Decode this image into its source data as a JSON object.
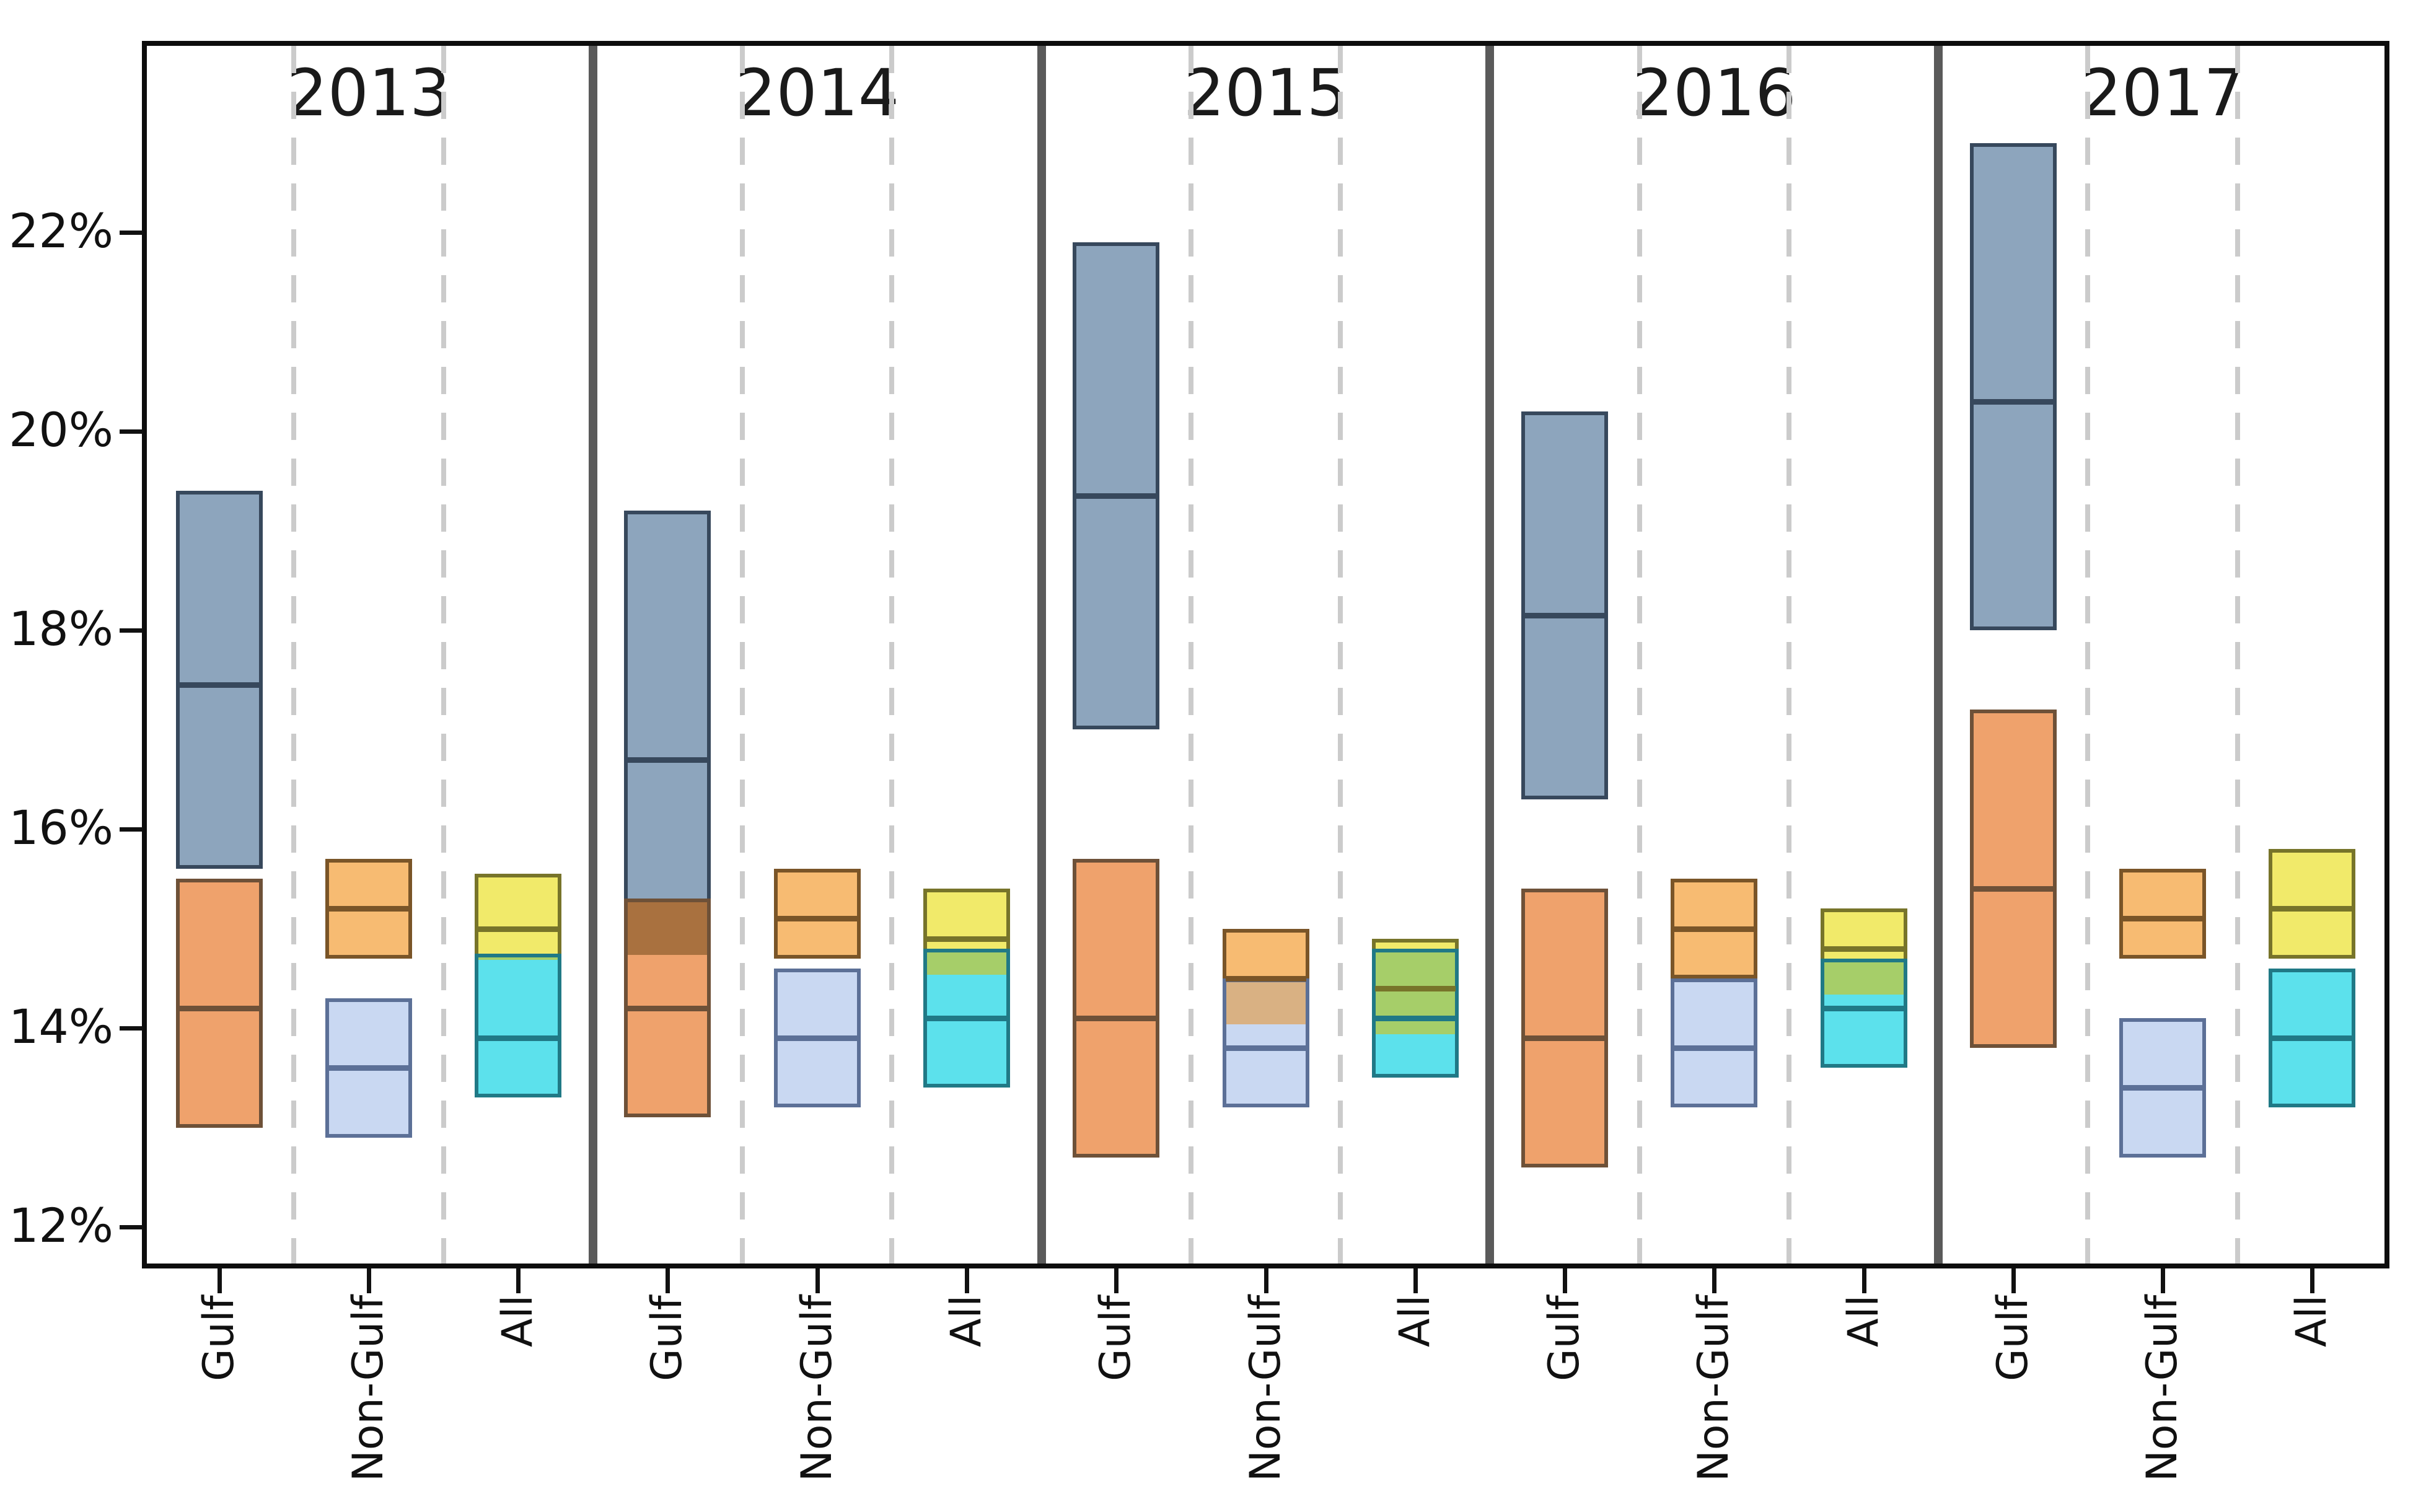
{
  "chart_data": {
    "type": "box",
    "title": "",
    "ylabel": "",
    "xlabel": "",
    "grid": "dashed vertical separators between categories, solid dark separators between year panels",
    "legend_position": "none",
    "y_axis": {
      "tick_values": [
        12,
        14,
        16,
        18,
        20,
        22
      ],
      "tick_labels": [
        "12%",
        "14%",
        "16%",
        "18%",
        "20%",
        "22%"
      ],
      "ylim": [
        11.6,
        23.9
      ],
      "unit": "%"
    },
    "categories": [
      "Gulf",
      "Non-Gulf",
      "All"
    ],
    "panels": [
      {
        "year": "2013",
        "groups": [
          {
            "category": "Gulf",
            "overlap_color": "#A9713F",
            "boxes": [
              {
                "name": "upper",
                "lo": 15.6,
                "med": 17.45,
                "hi": 19.4,
                "fill": "#8DA5BD",
                "border": "#37485C"
              },
              {
                "name": "lower",
                "lo": 13.0,
                "med": 14.2,
                "hi": 15.5,
                "fill": "#EFA26C",
                "border": "#6E5138"
              }
            ]
          },
          {
            "category": "Non-Gulf",
            "overlap_color": "#D9B183",
            "boxes": [
              {
                "name": "upper",
                "lo": 14.7,
                "med": 15.2,
                "hi": 15.7,
                "fill": "#F7BB72",
                "border": "#7A5528"
              },
              {
                "name": "lower",
                "lo": 12.9,
                "med": 13.6,
                "hi": 14.3,
                "fill": "#C9D8F2",
                "border": "#5C7097"
              }
            ]
          },
          {
            "category": "All",
            "overlap_color": "#A6CE69",
            "boxes": [
              {
                "name": "upper",
                "lo": 14.65,
                "med": 15.0,
                "hi": 15.55,
                "fill": "#F1EA6A",
                "border": "#77742A"
              },
              {
                "name": "lower",
                "lo": 13.3,
                "med": 13.9,
                "hi": 14.75,
                "fill": "#5CE1EC",
                "border": "#207986"
              }
            ]
          }
        ]
      },
      {
        "year": "2014",
        "groups": [
          {
            "category": "Gulf",
            "overlap_color": "#A9713F",
            "boxes": [
              {
                "name": "upper",
                "lo": 14.7,
                "med": 16.7,
                "hi": 19.2,
                "fill": "#8DA5BD",
                "border": "#37485C"
              },
              {
                "name": "lower",
                "lo": 13.1,
                "med": 14.2,
                "hi": 15.3,
                "fill": "#EFA26C",
                "border": "#6E5138"
              }
            ]
          },
          {
            "category": "Non-Gulf",
            "overlap_color": "#D9B183",
            "boxes": [
              {
                "name": "upper",
                "lo": 14.7,
                "med": 15.1,
                "hi": 15.6,
                "fill": "#F7BB72",
                "border": "#7A5528"
              },
              {
                "name": "lower",
                "lo": 13.2,
                "med": 13.9,
                "hi": 14.6,
                "fill": "#C9D8F2",
                "border": "#5C7097"
              }
            ]
          },
          {
            "category": "All",
            "overlap_color": "#A6CE69",
            "boxes": [
              {
                "name": "upper",
                "lo": 14.5,
                "med": 14.9,
                "hi": 15.4,
                "fill": "#F1EA6A",
                "border": "#77742A"
              },
              {
                "name": "lower",
                "lo": 13.4,
                "med": 14.1,
                "hi": 14.8,
                "fill": "#5CE1EC",
                "border": "#207986"
              }
            ]
          }
        ]
      },
      {
        "year": "2015",
        "groups": [
          {
            "category": "Gulf",
            "overlap_color": "#A9713F",
            "boxes": [
              {
                "name": "upper",
                "lo": 17.0,
                "med": 19.35,
                "hi": 21.9,
                "fill": "#8DA5BD",
                "border": "#37485C"
              },
              {
                "name": "lower",
                "lo": 12.7,
                "med": 14.1,
                "hi": 15.7,
                "fill": "#EFA26C",
                "border": "#6E5138"
              }
            ]
          },
          {
            "category": "Non-Gulf",
            "overlap_color": "#D9B183",
            "boxes": [
              {
                "name": "upper",
                "lo": 14.0,
                "med": 14.5,
                "hi": 15.0,
                "fill": "#F7BB72",
                "border": "#7A5528"
              },
              {
                "name": "lower",
                "lo": 13.2,
                "med": 13.8,
                "hi": 14.5,
                "fill": "#C9D8F2",
                "border": "#5C7097"
              }
            ]
          },
          {
            "category": "All",
            "overlap_color": "#A6CE69",
            "boxes": [
              {
                "name": "upper",
                "lo": 13.9,
                "med": 14.4,
                "hi": 14.9,
                "fill": "#F1EA6A",
                "border": "#77742A"
              },
              {
                "name": "lower",
                "lo": 13.5,
                "med": 14.1,
                "hi": 14.8,
                "fill": "#5CE1EC",
                "border": "#207986"
              }
            ]
          }
        ]
      },
      {
        "year": "2016",
        "groups": [
          {
            "category": "Gulf",
            "overlap_color": "#A9713F",
            "boxes": [
              {
                "name": "upper",
                "lo": 16.3,
                "med": 18.15,
                "hi": 20.2,
                "fill": "#8DA5BD",
                "border": "#37485C"
              },
              {
                "name": "lower",
                "lo": 12.6,
                "med": 13.9,
                "hi": 15.4,
                "fill": "#EFA26C",
                "border": "#6E5138"
              }
            ]
          },
          {
            "category": "Non-Gulf",
            "overlap_color": "#D9B183",
            "boxes": [
              {
                "name": "upper",
                "lo": 14.5,
                "med": 15.0,
                "hi": 15.5,
                "fill": "#F7BB72",
                "border": "#7A5528"
              },
              {
                "name": "lower",
                "lo": 13.2,
                "med": 13.8,
                "hi": 14.5,
                "fill": "#C9D8F2",
                "border": "#5C7097"
              }
            ]
          },
          {
            "category": "All",
            "overlap_color": "#A6CE69",
            "boxes": [
              {
                "name": "upper",
                "lo": 14.3,
                "med": 14.8,
                "hi": 15.2,
                "fill": "#F1EA6A",
                "border": "#77742A"
              },
              {
                "name": "lower",
                "lo": 13.6,
                "med": 14.2,
                "hi": 14.7,
                "fill": "#5CE1EC",
                "border": "#207986"
              }
            ]
          }
        ]
      },
      {
        "year": "2017",
        "groups": [
          {
            "category": "Gulf",
            "overlap_color": "#A9713F",
            "boxes": [
              {
                "name": "upper",
                "lo": 18.0,
                "med": 20.3,
                "hi": 22.9,
                "fill": "#8DA5BD",
                "border": "#37485C"
              },
              {
                "name": "lower",
                "lo": 13.8,
                "med": 15.4,
                "hi": 17.2,
                "fill": "#EFA26C",
                "border": "#6E5138"
              }
            ]
          },
          {
            "category": "Non-Gulf",
            "overlap_color": "#D9B183",
            "boxes": [
              {
                "name": "upper",
                "lo": 14.7,
                "med": 15.1,
                "hi": 15.6,
                "fill": "#F7BB72",
                "border": "#7A5528"
              },
              {
                "name": "lower",
                "lo": 12.7,
                "med": 13.4,
                "hi": 14.1,
                "fill": "#C9D8F2",
                "border": "#5C7097"
              }
            ]
          },
          {
            "category": "All",
            "overlap_color": "#A6CE69",
            "boxes": [
              {
                "name": "upper",
                "lo": 14.7,
                "med": 15.2,
                "hi": 15.8,
                "fill": "#F1EA6A",
                "border": "#77742A"
              },
              {
                "name": "lower",
                "lo": 13.2,
                "med": 13.9,
                "hi": 14.6,
                "fill": "#5CE1EC",
                "border": "#207986"
              }
            ]
          }
        ]
      }
    ],
    "colors": {
      "gulf_upper_fill": "#8DA5BD",
      "gulf_lower_fill": "#EFA26C",
      "nongulf_upper_fill": "#F7BB72",
      "nongulf_lower_fill": "#C9D8F2",
      "all_upper_fill": "#F1EA6A",
      "all_lower_fill": "#5CE1EC",
      "overlap_gulf": "#A9713F",
      "overlap_nongulf": "#D9B183",
      "overlap_all": "#A6CE69",
      "panel_separator": "#5a5a5a",
      "dashed_gridline": "#cbcbcb",
      "frame": "#0d0d0d"
    }
  }
}
